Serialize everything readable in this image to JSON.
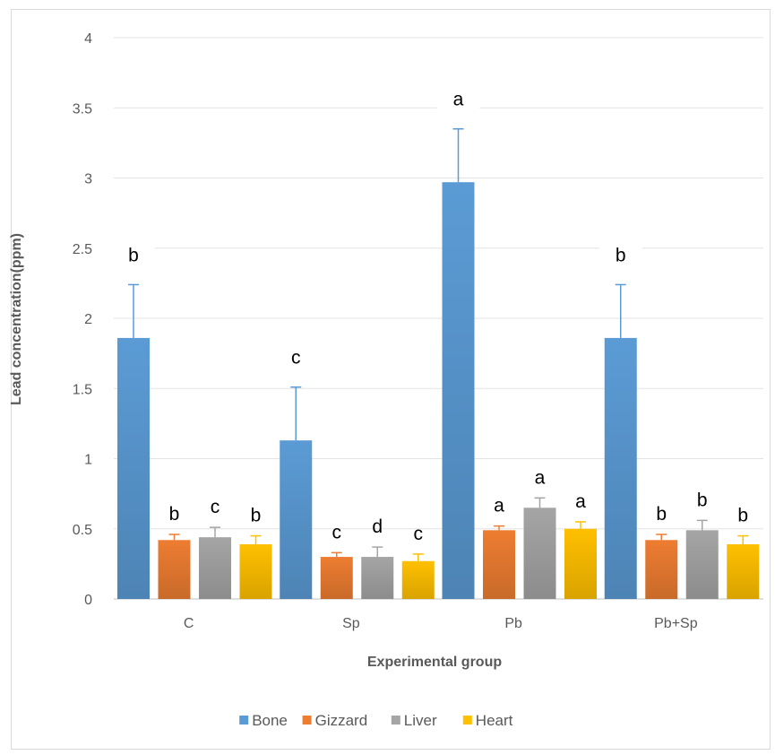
{
  "chart_data": {
    "type": "bar",
    "xlabel": "Experimental group",
    "ylabel": "Lead concentration(ppm)",
    "ylim": [
      0,
      4
    ],
    "yticks": [
      0,
      0.5,
      1,
      1.5,
      2,
      2.5,
      3,
      3.5,
      4
    ],
    "ytick_labels": [
      "0",
      "0.5",
      "1",
      "1.5",
      "2",
      "2.5",
      "3",
      "3.5",
      "4"
    ],
    "grid": true,
    "legend_position": "bottom",
    "categories": [
      "C",
      "Sp",
      "Pb",
      "Pb+Sp"
    ],
    "series": [
      {
        "name": "Bone",
        "color": "#5b9bd5",
        "values": [
          1.86,
          1.13,
          2.97,
          1.86
        ],
        "errors": [
          0.38,
          0.38,
          0.38,
          0.38
        ],
        "labels": [
          "b",
          "c",
          "a",
          "b"
        ]
      },
      {
        "name": "Gizzard",
        "color": "#ed7d31",
        "values": [
          0.42,
          0.3,
          0.49,
          0.42
        ],
        "errors": [
          0.04,
          0.03,
          0.03,
          0.04
        ],
        "labels": [
          "b",
          "c",
          "a",
          "b"
        ]
      },
      {
        "name": "Liver",
        "color": "#a5a5a5",
        "values": [
          0.44,
          0.3,
          0.65,
          0.49
        ],
        "errors": [
          0.07,
          0.07,
          0.07,
          0.07
        ],
        "labels": [
          "c",
          "d",
          "a",
          "b"
        ]
      },
      {
        "name": "Heart",
        "color": "#ffc000",
        "values": [
          0.39,
          0.27,
          0.5,
          0.39
        ],
        "errors": [
          0.06,
          0.05,
          0.05,
          0.06
        ],
        "labels": [
          "b",
          "c",
          "a",
          "b"
        ]
      }
    ]
  }
}
